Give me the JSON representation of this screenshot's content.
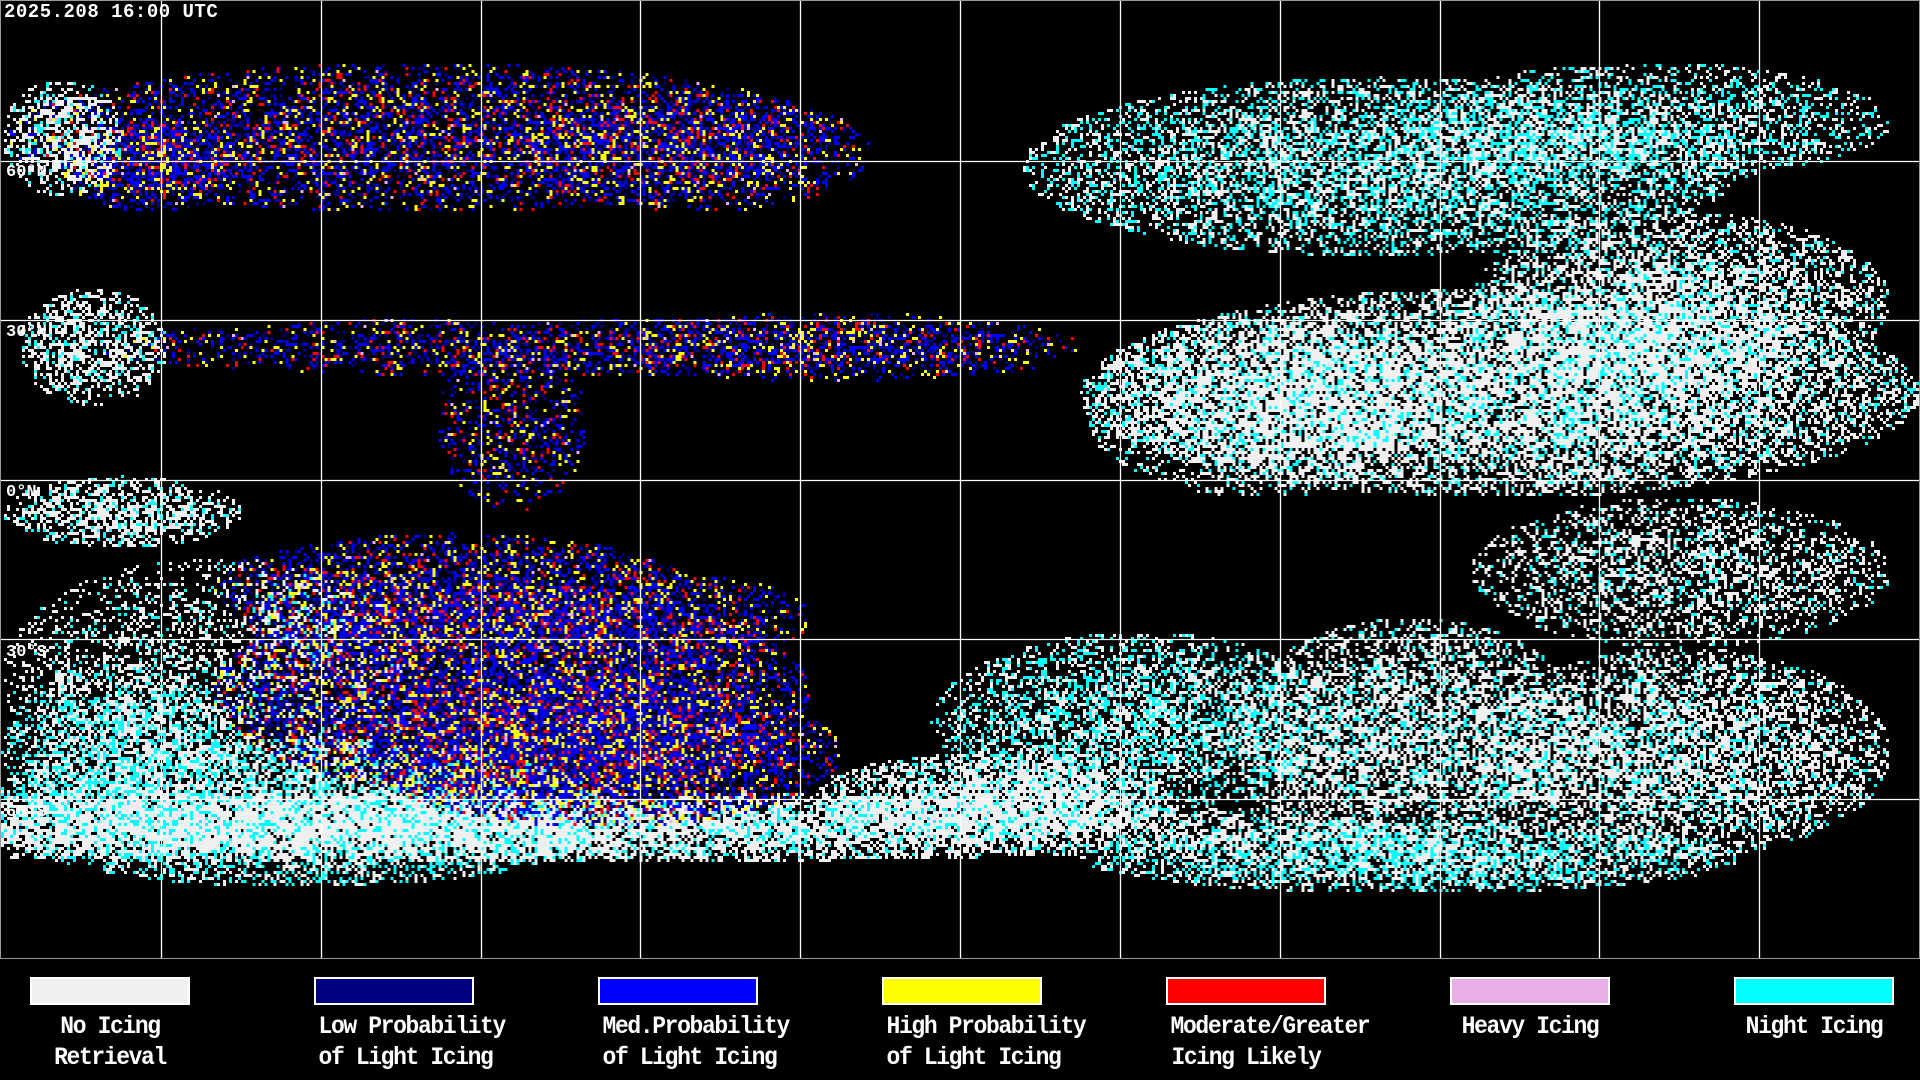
{
  "timestamp": "2025.208 16:00 UTC",
  "latitude_labels": [
    "60°N",
    "30°N",
    "0°N",
    "30°S",
    "60°S"
  ],
  "grid": {
    "longitude_spacing_deg": 30,
    "latitude_spacing_deg": 30,
    "projection": "equirectangular",
    "color": "#ffffff"
  },
  "legend": [
    {
      "line1": "No Icing",
      "line2": "Retrieval",
      "color": "#f0f0f0"
    },
    {
      "line1": "Low Probability",
      "line2": "of Light Icing",
      "color": "#000080"
    },
    {
      "line1": "Med.Probability",
      "line2": "of Light Icing",
      "color": "#0000ff"
    },
    {
      "line1": "High Probability",
      "line2": "of Light Icing",
      "color": "#ffff00"
    },
    {
      "line1": "Moderate/Greater",
      "line2": "Icing Likely",
      "color": "#ff0000"
    },
    {
      "line1": "Heavy Icing",
      "line2": "",
      "color": "#e8aee6"
    },
    {
      "line1": "Night Icing",
      "line2": "",
      "color": "#00ffff"
    }
  ]
}
